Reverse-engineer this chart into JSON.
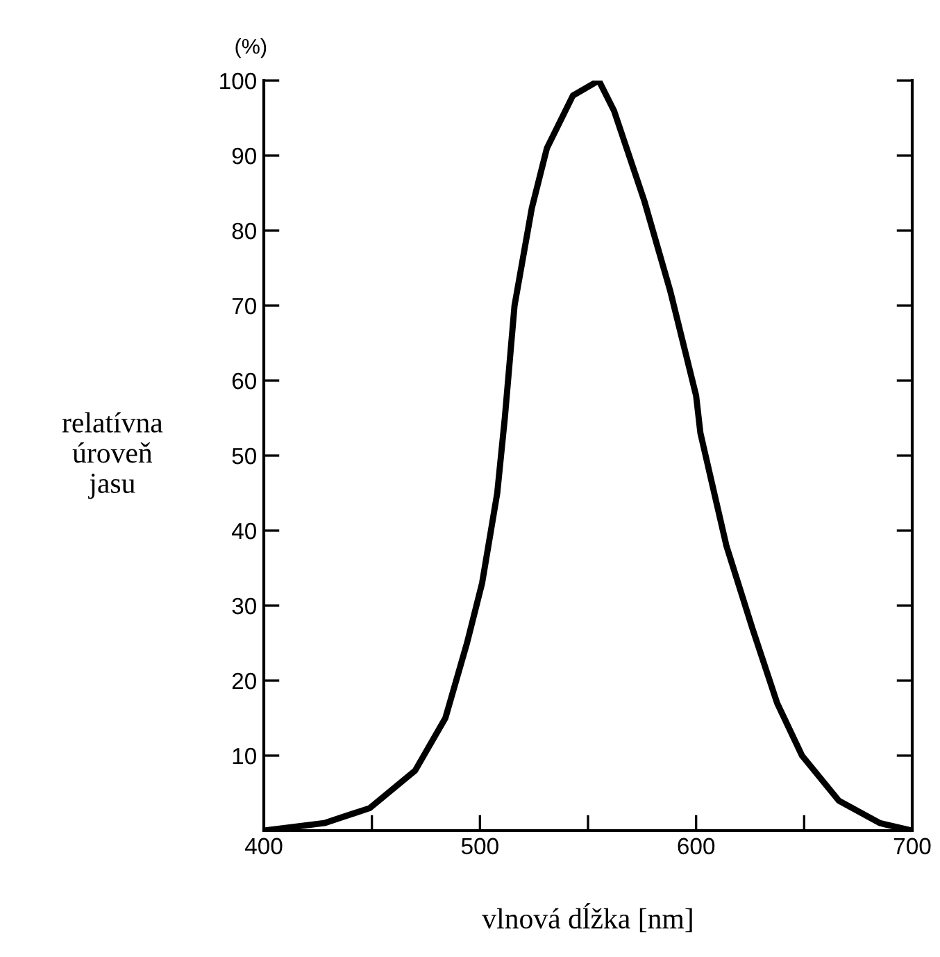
{
  "chart_data": {
    "type": "line",
    "xlabel": "vlnová dĺžka [nm]",
    "ylabel": "relatívna\núroveň\njasu",
    "annotations": [
      "(%)"
    ],
    "x": [
      400,
      428,
      449,
      470,
      484,
      494,
      501,
      508,
      511.5,
      516,
      524,
      531,
      543,
      555,
      562,
      576,
      588,
      600,
      602,
      614,
      626,
      637.5,
      649,
      666,
      685,
      700
    ],
    "series": [
      {
        "color": "#000000",
        "values": [
          0,
          1,
          3,
          8,
          15,
          25,
          33,
          45,
          55,
          70,
          83,
          91,
          98,
          100,
          96,
          84,
          72,
          58,
          53,
          38,
          27,
          17,
          10,
          4,
          1,
          0
        ]
      }
    ],
    "xlim": [
      400,
      700
    ],
    "ylim": [
      0,
      100
    ],
    "xticks": [
      400,
      {
        "value": 450,
        "label": null
      },
      500,
      {
        "value": 550,
        "label": null
      },
      600,
      {
        "value": 650,
        "label": null
      },
      700
    ],
    "yticks": [
      {
        "value": 0,
        "label": null
      },
      10,
      20,
      30,
      40,
      50,
      60,
      70,
      80,
      90,
      100
    ],
    "grid": false,
    "legend": false,
    "marker": "none",
    "line_style": "solid"
  }
}
